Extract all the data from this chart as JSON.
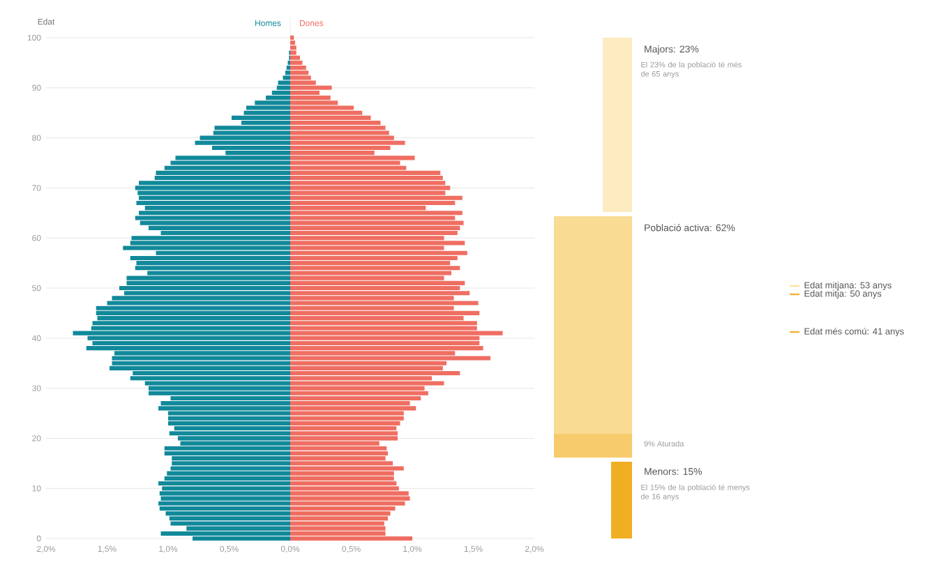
{
  "chart_data": [
    {
      "type": "bar",
      "orientation": "horizontal",
      "stacked": true,
      "ylabel": "Edat",
      "grid": "y",
      "categories": [
        "100",
        null,
        null,
        null,
        null,
        null,
        null,
        null,
        null,
        null,
        "90",
        null,
        null,
        null,
        null,
        null,
        null,
        null,
        null,
        null,
        "80",
        null,
        null,
        null,
        null,
        null,
        null,
        null,
        null,
        null,
        "70",
        null,
        null,
        null,
        null,
        null,
        null,
        null,
        null,
        null,
        "60",
        null,
        null,
        null,
        null,
        null,
        null,
        null,
        null,
        null,
        "50",
        null,
        null,
        null,
        null,
        null,
        null,
        null,
        null,
        null,
        "40",
        null,
        null,
        null,
        null,
        null,
        null,
        null,
        null,
        null,
        "30",
        null,
        null,
        null,
        null,
        null,
        null,
        null,
        null,
        null,
        "20",
        null,
        null,
        null,
        null,
        null,
        null,
        null,
        null,
        null,
        "10",
        null,
        null,
        null,
        null,
        null,
        null,
        null,
        null,
        null,
        "0"
      ],
      "series": [
        {
          "name": "Homes",
          "color": "#11899a",
          "values": [
            0,
            0,
            0,
            -0.01,
            -0.01,
            -0.02,
            -0.03,
            -0.04,
            -0.06,
            -0.1,
            -0.11,
            -0.15,
            -0.2,
            -0.29,
            -0.36,
            -0.38,
            -0.48,
            -0.4,
            -0.62,
            -0.63,
            -0.74,
            -0.78,
            -0.64,
            -0.53,
            -0.94,
            -0.98,
            -1.03,
            -1.1,
            -1.11,
            -1.24,
            -1.27,
            -1.25,
            -1.24,
            -1.26,
            -1.19,
            -1.24,
            -1.27,
            -1.23,
            -1.16,
            -1.06,
            -1.3,
            -1.31,
            -1.37,
            -1.1,
            -1.31,
            -1.26,
            -1.27,
            -1.17,
            -1.34,
            -1.34,
            -1.4,
            -1.36,
            -1.46,
            -1.5,
            -1.59,
            -1.59,
            -1.58,
            -1.62,
            -1.63,
            -1.78,
            -1.66,
            -1.62,
            -1.67,
            -1.44,
            -1.46,
            -1.46,
            -1.48,
            -1.29,
            -1.31,
            -1.19,
            -1.16,
            -1.16,
            -0.98,
            -1.06,
            -1.08,
            -1.0,
            -1.0,
            -1.0,
            -0.95,
            -0.99,
            -0.92,
            -0.9,
            -1.03,
            -1.03,
            -0.97,
            -0.97,
            -0.98,
            -1.01,
            -1.03,
            -1.08,
            -1.05,
            -1.07,
            -1.06,
            -1.08,
            -1.07,
            -1.02,
            -0.99,
            -0.98,
            -0.85,
            -1.06,
            -0.8
          ]
        },
        {
          "name": "Dones",
          "color": "#ef6e62",
          "values": [
            0.03,
            0.04,
            0.05,
            0.05,
            0.08,
            0.1,
            0.13,
            0.15,
            0.17,
            0.21,
            0.34,
            0.24,
            0.33,
            0.39,
            0.52,
            0.59,
            0.66,
            0.74,
            0.78,
            0.81,
            0.85,
            0.94,
            0.82,
            0.69,
            1.02,
            0.9,
            0.95,
            1.23,
            1.25,
            1.27,
            1.31,
            1.27,
            1.41,
            1.35,
            1.11,
            1.41,
            1.35,
            1.42,
            1.39,
            1.37,
            1.26,
            1.43,
            1.26,
            1.45,
            1.37,
            1.31,
            1.39,
            1.32,
            1.26,
            1.43,
            1.39,
            1.47,
            1.34,
            1.54,
            1.34,
            1.55,
            1.42,
            1.53,
            1.53,
            1.74,
            1.55,
            1.55,
            1.58,
            1.35,
            1.64,
            1.28,
            1.25,
            1.39,
            1.16,
            1.26,
            1.1,
            1.13,
            1.07,
            0.98,
            1.03,
            0.93,
            0.93,
            0.9,
            0.87,
            0.88,
            0.88,
            0.73,
            0.79,
            0.8,
            0.78,
            0.84,
            0.93,
            0.85,
            0.85,
            0.87,
            0.89,
            0.97,
            0.98,
            0.94,
            0.86,
            0.82,
            0.8,
            0.77,
            0.78,
            0.78,
            1.0
          ]
        }
      ],
      "xlim": [
        -2,
        2
      ],
      "xticks": [
        {
          "value": -2,
          "label": "2,0%"
        },
        {
          "value": -1.5,
          "label": "1,5%"
        },
        {
          "value": -1,
          "label": "1,0%"
        },
        {
          "value": -0.5,
          "label": "0,5%"
        },
        {
          "value": 0,
          "label": "0,0%"
        },
        {
          "value": 0.5,
          "label": "0,5%"
        },
        {
          "value": 1,
          "label": "1,0%"
        },
        {
          "value": 1.5,
          "label": "1,5%"
        },
        {
          "value": 2,
          "label": "2,0%"
        }
      ]
    },
    {
      "type": "other",
      "annotations": [
        "Majors: 23%",
        "El 23% de la població té més de 65 anys",
        "Població activa: 62%",
        "Edat mitjana: 53 anys",
        "Edat mitja: 50 anys",
        "Edat més comú: 41 anys",
        "9% Aturada",
        "Menors: 15%",
        "El 15% de la població té menys de 16 anys"
      ]
    }
  ]
}
